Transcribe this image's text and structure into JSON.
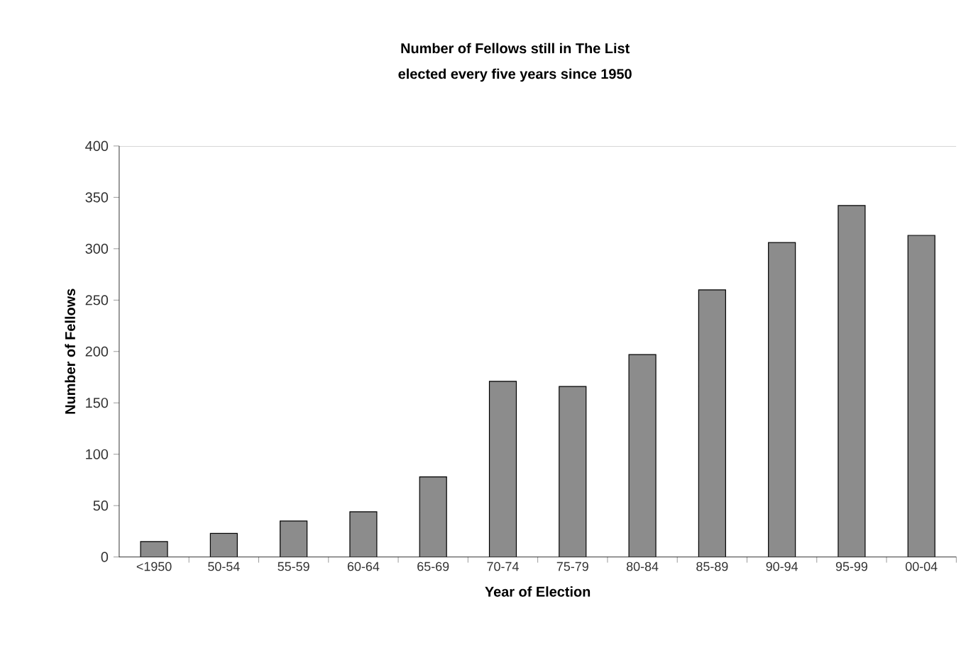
{
  "chart_data": {
    "type": "bar",
    "title": "Number of Fellows still in The List",
    "subtitle": "elected every five years since 1950",
    "xlabel": "Year of Election",
    "ylabel": "Number of Fellows",
    "categories": [
      "<1950",
      "50-54",
      "55-59",
      "60-64",
      "65-69",
      "70-74",
      "75-79",
      "80-84",
      "85-89",
      "90-94",
      "95-99",
      "00-04"
    ],
    "values": [
      15,
      23,
      35,
      44,
      78,
      171,
      166,
      197,
      260,
      306,
      342,
      313
    ],
    "color": "#8c8c8c",
    "ylim": [
      0,
      400
    ],
    "yticks": [
      0,
      50,
      100,
      150,
      200,
      250,
      300,
      350,
      400
    ]
  }
}
